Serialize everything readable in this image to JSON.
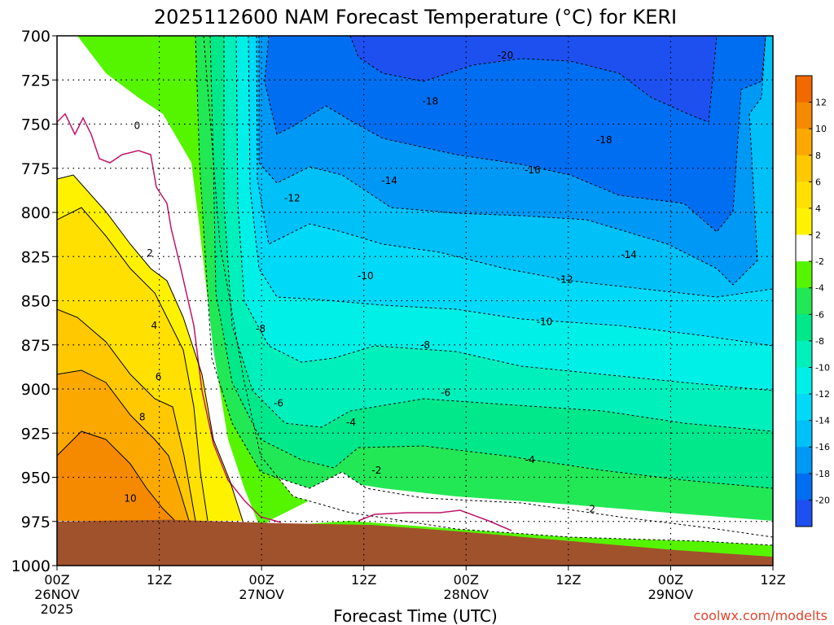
{
  "chart_data": {
    "type": "heatmap",
    "title": "2025112600 NAM Forecast Temperature (°C) for KERI",
    "xlabel": "Forecast Time (UTC)",
    "ylabel": "",
    "credit": "coolwx.com/modelts",
    "x_ticks": [
      {
        "hour": 0,
        "line1": "00Z",
        "line2": "26NOV",
        "line3": "2025"
      },
      {
        "hour": 12,
        "line1": "12Z",
        "line2": "",
        "line3": ""
      },
      {
        "hour": 24,
        "line1": "00Z",
        "line2": "27NOV",
        "line3": ""
      },
      {
        "hour": 36,
        "line1": "12Z",
        "line2": "",
        "line3": ""
      },
      {
        "hour": 48,
        "line1": "00Z",
        "line2": "28NOV",
        "line3": ""
      },
      {
        "hour": 60,
        "line1": "12Z",
        "line2": "",
        "line3": ""
      },
      {
        "hour": 72,
        "line1": "00Z",
        "line2": "29NOV",
        "line3": ""
      },
      {
        "hour": 84,
        "line1": "12Z",
        "line2": "",
        "line3": ""
      }
    ],
    "xlim": [
      0,
      84
    ],
    "y_ticks": [
      "700",
      "725",
      "750",
      "775",
      "800",
      "825",
      "850",
      "875",
      "900",
      "925",
      "950",
      "975",
      "1000"
    ],
    "ylim": [
      700,
      1000
    ],
    "surface_pressure": [
      {
        "hour": 0,
        "p": 975
      },
      {
        "hour": 13,
        "p": 974
      },
      {
        "hour": 26,
        "p": 976
      },
      {
        "hour": 37,
        "p": 977
      },
      {
        "hour": 48,
        "p": 981
      },
      {
        "hour": 60,
        "p": 986
      },
      {
        "hour": 72,
        "p": 991
      },
      {
        "hour": 84,
        "p": 995
      }
    ],
    "colorbar": {
      "labels": [
        "12",
        "10",
        "8",
        "6",
        "4",
        "2",
        "-2",
        "-4",
        "-6",
        "-8",
        "-10",
        "-12",
        "-14",
        "-16",
        "-18",
        "-20"
      ],
      "colors": [
        "#f06a00",
        "#f58a00",
        "#fba800",
        "#ffc800",
        "#ffe000",
        "#fff200",
        "#ffffff",
        "#55f500",
        "#22e855",
        "#00e88a",
        "#00f0bb",
        "#00f0e8",
        "#00daf8",
        "#00c0f8",
        "#0098f5",
        "#006ef0",
        "#1e50f0"
      ]
    },
    "contour_labels": [
      {
        "text": "0",
        "hour": 9.4,
        "p": 751
      },
      {
        "text": "2",
        "hour": 10.9,
        "p": 823
      },
      {
        "text": "4",
        "hour": 11.4,
        "p": 864
      },
      {
        "text": "6",
        "hour": 11.9,
        "p": 893
      },
      {
        "text": "8",
        "hour": 10.0,
        "p": 916
      },
      {
        "text": "10",
        "hour": 8.6,
        "p": 962
      },
      {
        "text": "-2",
        "hour": 37.5,
        "p": 946
      },
      {
        "text": "-2",
        "hour": 62.6,
        "p": 968
      },
      {
        "text": "-4",
        "hour": 34.5,
        "p": 919
      },
      {
        "text": "-4",
        "hour": 55.5,
        "p": 940
      },
      {
        "text": "-6",
        "hour": 26.0,
        "p": 908
      },
      {
        "text": "-6",
        "hour": 45.6,
        "p": 902
      },
      {
        "text": "-8",
        "hour": 23.9,
        "p": 866
      },
      {
        "text": "-8",
        "hour": 43.2,
        "p": 875
      },
      {
        "text": "-10",
        "hour": 36.2,
        "p": 836
      },
      {
        "text": "-10",
        "hour": 57.2,
        "p": 862
      },
      {
        "text": "-12",
        "hour": 27.6,
        "p": 792
      },
      {
        "text": "-12",
        "hour": 59.6,
        "p": 838
      },
      {
        "text": "-14",
        "hour": 39.0,
        "p": 782
      },
      {
        "text": "-14",
        "hour": 67.1,
        "p": 824
      },
      {
        "text": "-16",
        "hour": 55.8,
        "p": 776
      },
      {
        "text": "-18",
        "hour": 43.8,
        "p": 737
      },
      {
        "text": "-18",
        "hour": 64.2,
        "p": 759
      },
      {
        "text": "-20",
        "hour": 52.6,
        "p": 711
      }
    ]
  }
}
